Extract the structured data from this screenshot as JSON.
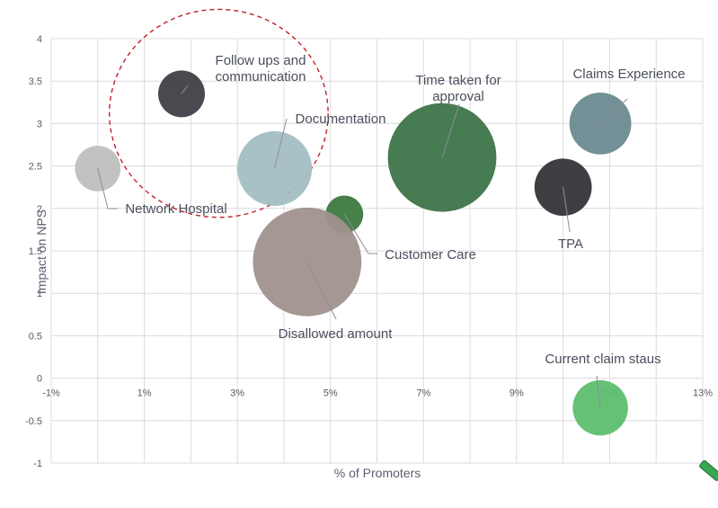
{
  "chart_data": {
    "type": "bubble",
    "title": "",
    "xlabel": "% of Promoters",
    "ylabel": "Impact on NPS",
    "xlim": [
      -1,
      13
    ],
    "ylim": [
      -1,
      4
    ],
    "xticks": [
      "-1%",
      "1%",
      "3%",
      "5%",
      "7%",
      "9%",
      "11%",
      "13%"
    ],
    "xtick_values": [
      -1,
      1,
      3,
      5,
      7,
      9,
      11,
      13
    ],
    "yticks": [
      "4",
      "3.5",
      "3",
      "2.5",
      "2",
      "1.5",
      "1",
      "0.5",
      "0",
      "-0.5",
      "-1"
    ],
    "ytick_values": [
      4,
      3.5,
      3,
      2.5,
      2,
      1.5,
      1,
      0.5,
      0,
      -0.5,
      -1
    ],
    "grid": true,
    "series": [
      {
        "label": [
          "Follow ups and",
          "communication"
        ],
        "x": 1.8,
        "y": 3.35,
        "size": 1.0,
        "color": "#3f3f46"
      },
      {
        "label": [
          "Documentation"
        ],
        "x": 3.8,
        "y": 2.47,
        "size": 2.55,
        "color": "#a3bec4"
      },
      {
        "label": [
          "Network Hospital"
        ],
        "x": 0.0,
        "y": 2.47,
        "size": 0.95,
        "color": "#bfbfbf"
      },
      {
        "label": [
          "Time taken for",
          "approval"
        ],
        "x": 7.4,
        "y": 2.6,
        "size": 5.4,
        "color": "#3d7448"
      },
      {
        "label": [
          "Claims Experience"
        ],
        "x": 10.8,
        "y": 3.0,
        "size": 1.75,
        "color": "#6b8a90"
      },
      {
        "label": [
          "TPA"
        ],
        "x": 10.0,
        "y": 2.25,
        "size": 1.5,
        "color": "#353539"
      },
      {
        "label": [
          "Customer Care"
        ],
        "x": 5.3,
        "y": 1.93,
        "size": 0.65,
        "color": "#3d7a3f"
      },
      {
        "label": [
          "Disallowed amount"
        ],
        "x": 4.5,
        "y": 1.37,
        "size": 5.4,
        "color": "#a0918d"
      },
      {
        "label": [
          "Current claim staus"
        ],
        "x": 10.8,
        "y": -0.35,
        "size": 1.4,
        "color": "#5dbf6e"
      }
    ],
    "highlight_circle": {
      "cx": 2.6,
      "cy": 3.12,
      "rx": 4.7,
      "ry": 2.45,
      "color": "#c0202a",
      "style": "dashed"
    }
  }
}
